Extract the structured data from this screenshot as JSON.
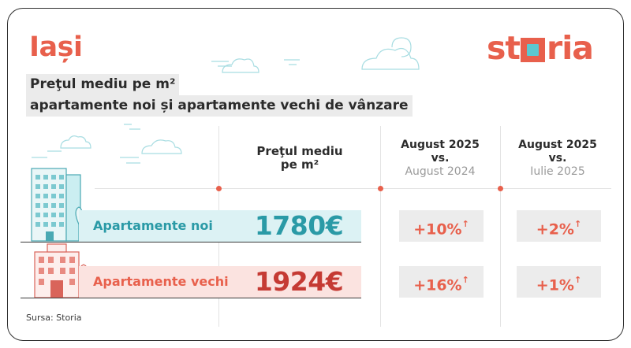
{
  "city": "Iași",
  "brand": {
    "prefix": "st",
    "suffix": "ria"
  },
  "title": {
    "line1": "Preţul mediu pe m²",
    "line2": "apartamente noi și apartamente vechi de vânzare"
  },
  "columns": {
    "price_head": [
      "Preţul mediu",
      "pe m²"
    ],
    "yoy": {
      "line1": "August 2025",
      "line2": "vs.",
      "line3": "August 2024"
    },
    "mom": {
      "line1": "August 2025",
      "line2": "vs.",
      "line3": "Iulie 2025"
    }
  },
  "rows": [
    {
      "label": "Apartamente noi",
      "price": "1780€",
      "yoy": "+10%",
      "mom": "+2%"
    },
    {
      "label": "Apartamente vechi",
      "price": "1924€",
      "yoy": "+16%",
      "mom": "+1%"
    }
  ],
  "arrow": "↑",
  "source": "Sursa: Storia",
  "colors": {
    "accent": "#e8604c",
    "teal": "#2a9aa6",
    "teal_bg": "#dcf2f4",
    "red_bg": "#fbe3e0",
    "price_red": "#c53a33"
  }
}
